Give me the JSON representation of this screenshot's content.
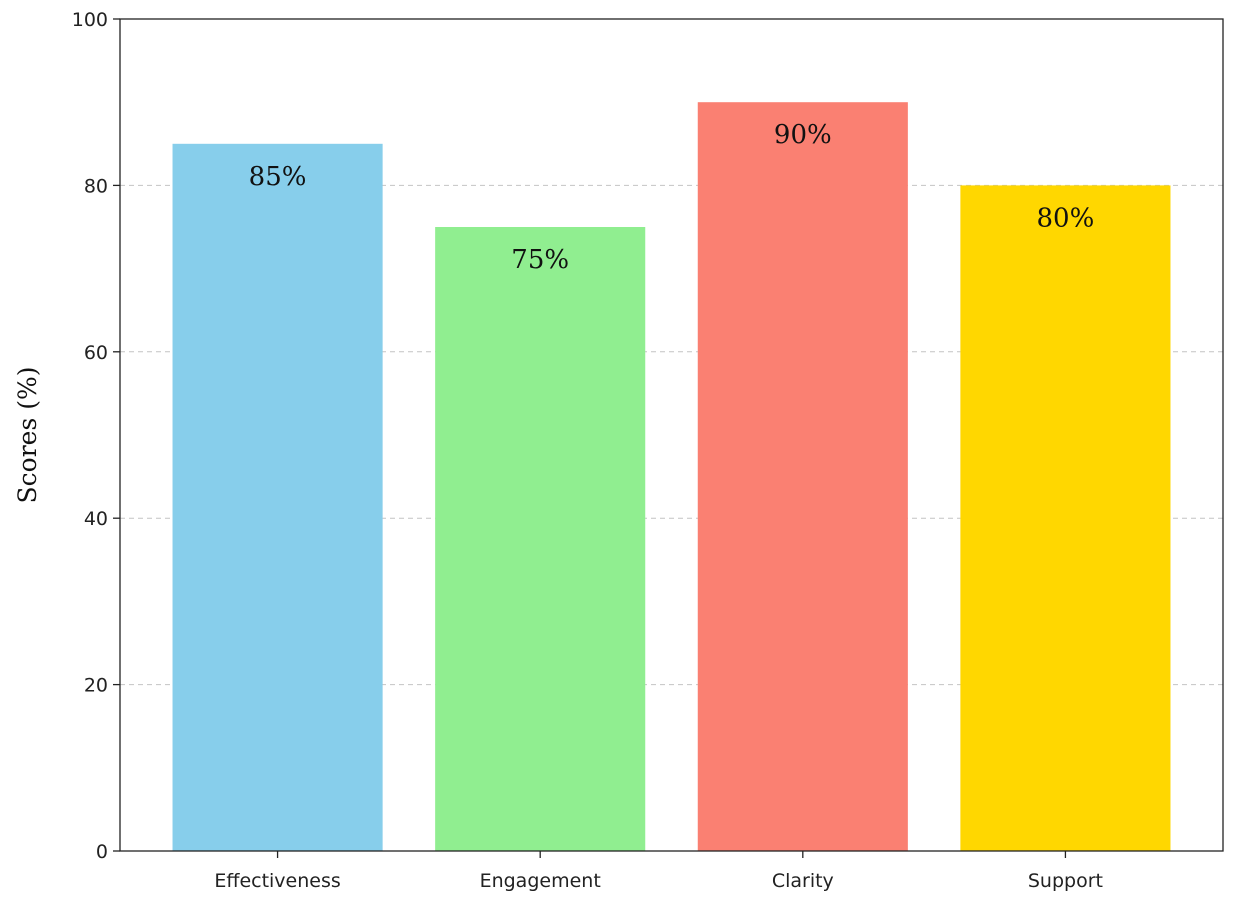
{
  "chart_data": {
    "type": "bar",
    "categories": [
      "Effectiveness",
      "Engagement",
      "Clarity",
      "Support"
    ],
    "values": [
      85,
      75,
      90,
      80
    ],
    "data_labels": [
      "85%",
      "75%",
      "90%",
      "80%"
    ],
    "colors": [
      "#87ceeb",
      "#90ee90",
      "#fa8072",
      "#ffd700"
    ],
    "title": "",
    "xlabel": "",
    "ylabel": "Scores (%)",
    "ylim": [
      0,
      100
    ],
    "yticks": [
      0,
      20,
      40,
      60,
      80,
      100
    ],
    "grid": "horizontal dashed",
    "legend": "none"
  }
}
